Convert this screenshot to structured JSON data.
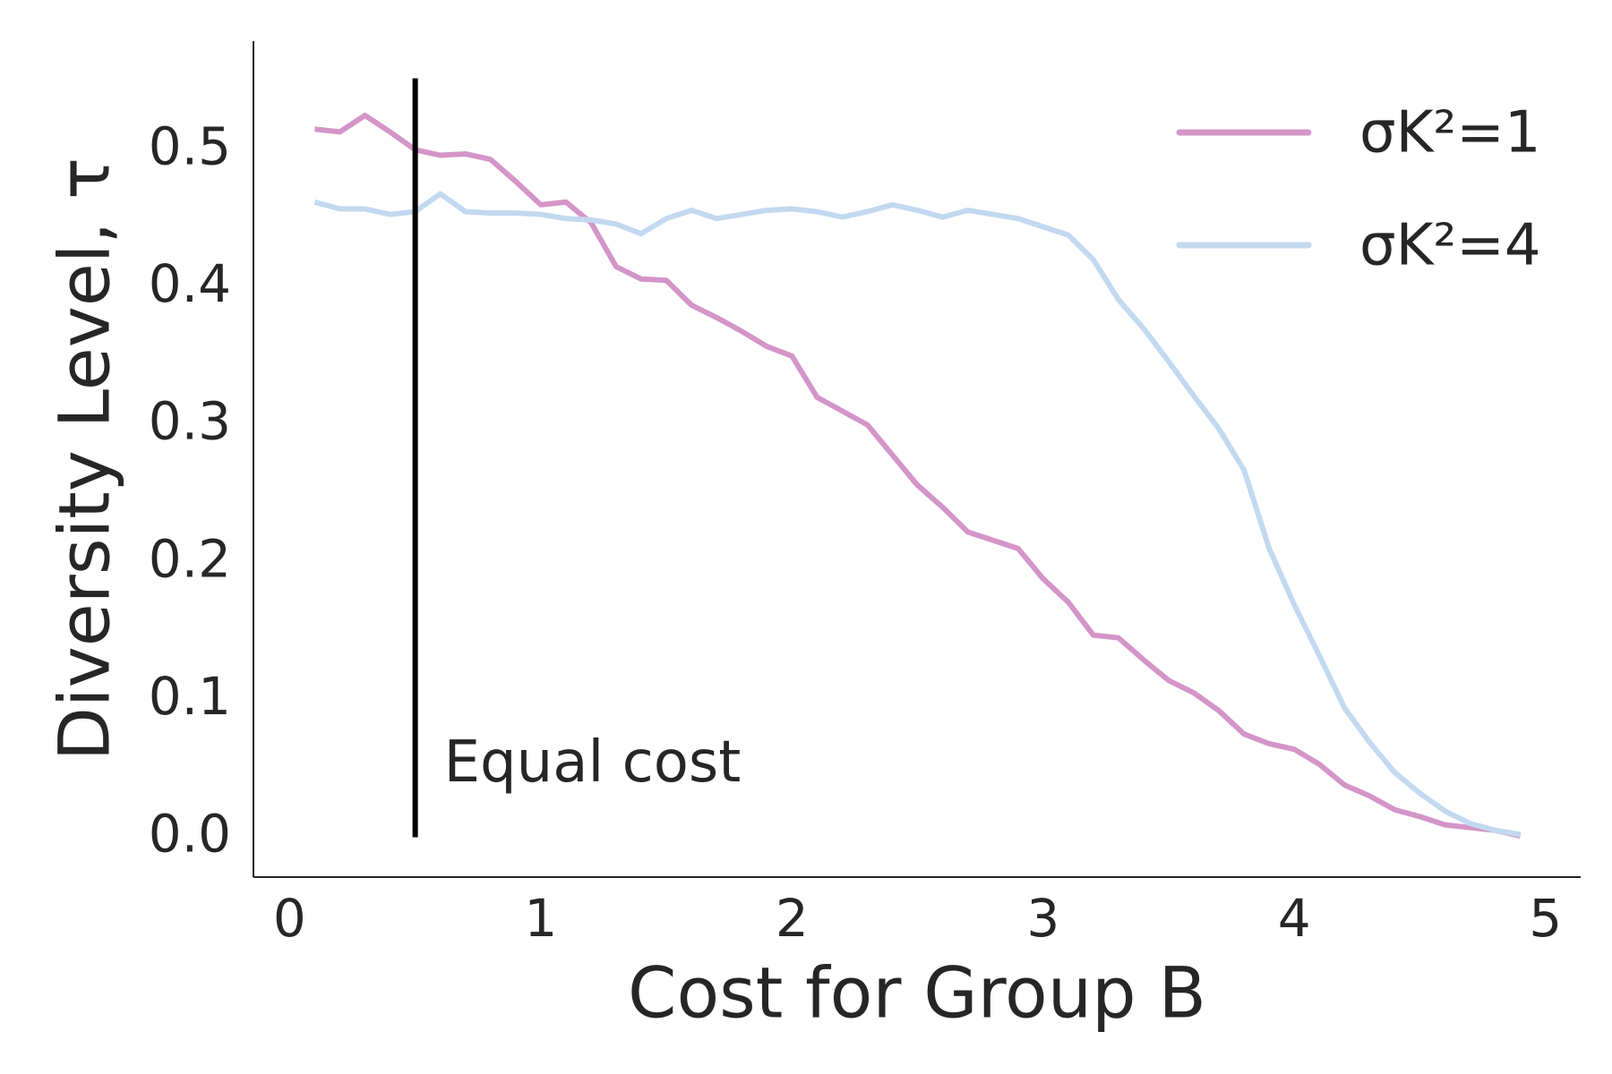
{
  "chart_data": {
    "type": "line",
    "xlabel": "Cost for Group B",
    "ylabel": "Diversity Level, τ",
    "x": [
      0.1,
      0.2,
      0.3,
      0.4,
      0.5,
      0.6,
      0.7,
      0.8,
      0.9,
      1.0,
      1.1,
      1.2,
      1.3,
      1.4,
      1.5,
      1.6,
      1.7,
      1.8,
      1.9,
      2.0,
      2.1,
      2.2,
      2.3,
      2.4,
      2.5,
      2.6,
      2.7,
      2.8,
      2.9,
      3.0,
      3.1,
      3.2,
      3.3,
      3.4,
      3.5,
      3.6,
      3.7,
      3.8,
      3.9,
      4.0,
      4.1,
      4.2,
      4.3,
      4.4,
      4.5,
      4.6,
      4.7,
      4.8,
      4.9
    ],
    "series": [
      {
        "name": "σK²=1",
        "color": "#d495c8",
        "values": [
          0.515,
          0.513,
          0.525,
          0.513,
          0.5,
          0.496,
          0.497,
          0.493,
          0.477,
          0.46,
          0.462,
          0.447,
          0.415,
          0.406,
          0.405,
          0.387,
          0.378,
          0.368,
          0.357,
          0.35,
          0.32,
          0.31,
          0.3,
          0.278,
          0.256,
          0.24,
          0.222,
          0.216,
          0.21,
          0.188,
          0.171,
          0.147,
          0.145,
          0.129,
          0.114,
          0.105,
          0.092,
          0.075,
          0.068,
          0.064,
          0.053,
          0.038,
          0.03,
          0.02,
          0.015,
          0.009,
          0.007,
          0.005,
          0.001
        ]
      },
      {
        "name": "σK²=4",
        "color": "#c3d9f0",
        "values": [
          0.462,
          0.457,
          0.457,
          0.453,
          0.455,
          0.468,
          0.455,
          0.454,
          0.454,
          0.453,
          0.45,
          0.449,
          0.446,
          0.439,
          0.45,
          0.456,
          0.45,
          0.453,
          0.456,
          0.457,
          0.455,
          0.451,
          0.455,
          0.46,
          0.456,
          0.451,
          0.456,
          0.453,
          0.45,
          0.444,
          0.438,
          0.42,
          0.391,
          0.37,
          0.346,
          0.321,
          0.297,
          0.267,
          0.21,
          0.169,
          0.132,
          0.094,
          0.069,
          0.047,
          0.032,
          0.019,
          0.01,
          0.005,
          0.002
        ]
      }
    ],
    "vline": {
      "x": 0.5,
      "ymin": 0,
      "ymax": 0.552,
      "color": "#000000",
      "label": "Equal cost"
    },
    "xlim": [
      -0.144,
      5.14
    ],
    "ylim": [
      -0.029,
      0.579
    ],
    "xticks": [
      0,
      1,
      2,
      3,
      4,
      5
    ],
    "yticks": [
      {
        "value": 0,
        "label": "0.0"
      },
      0.1,
      0.2,
      0.3,
      0.4,
      0.5
    ],
    "legend": "upper right",
    "grid": false
  }
}
